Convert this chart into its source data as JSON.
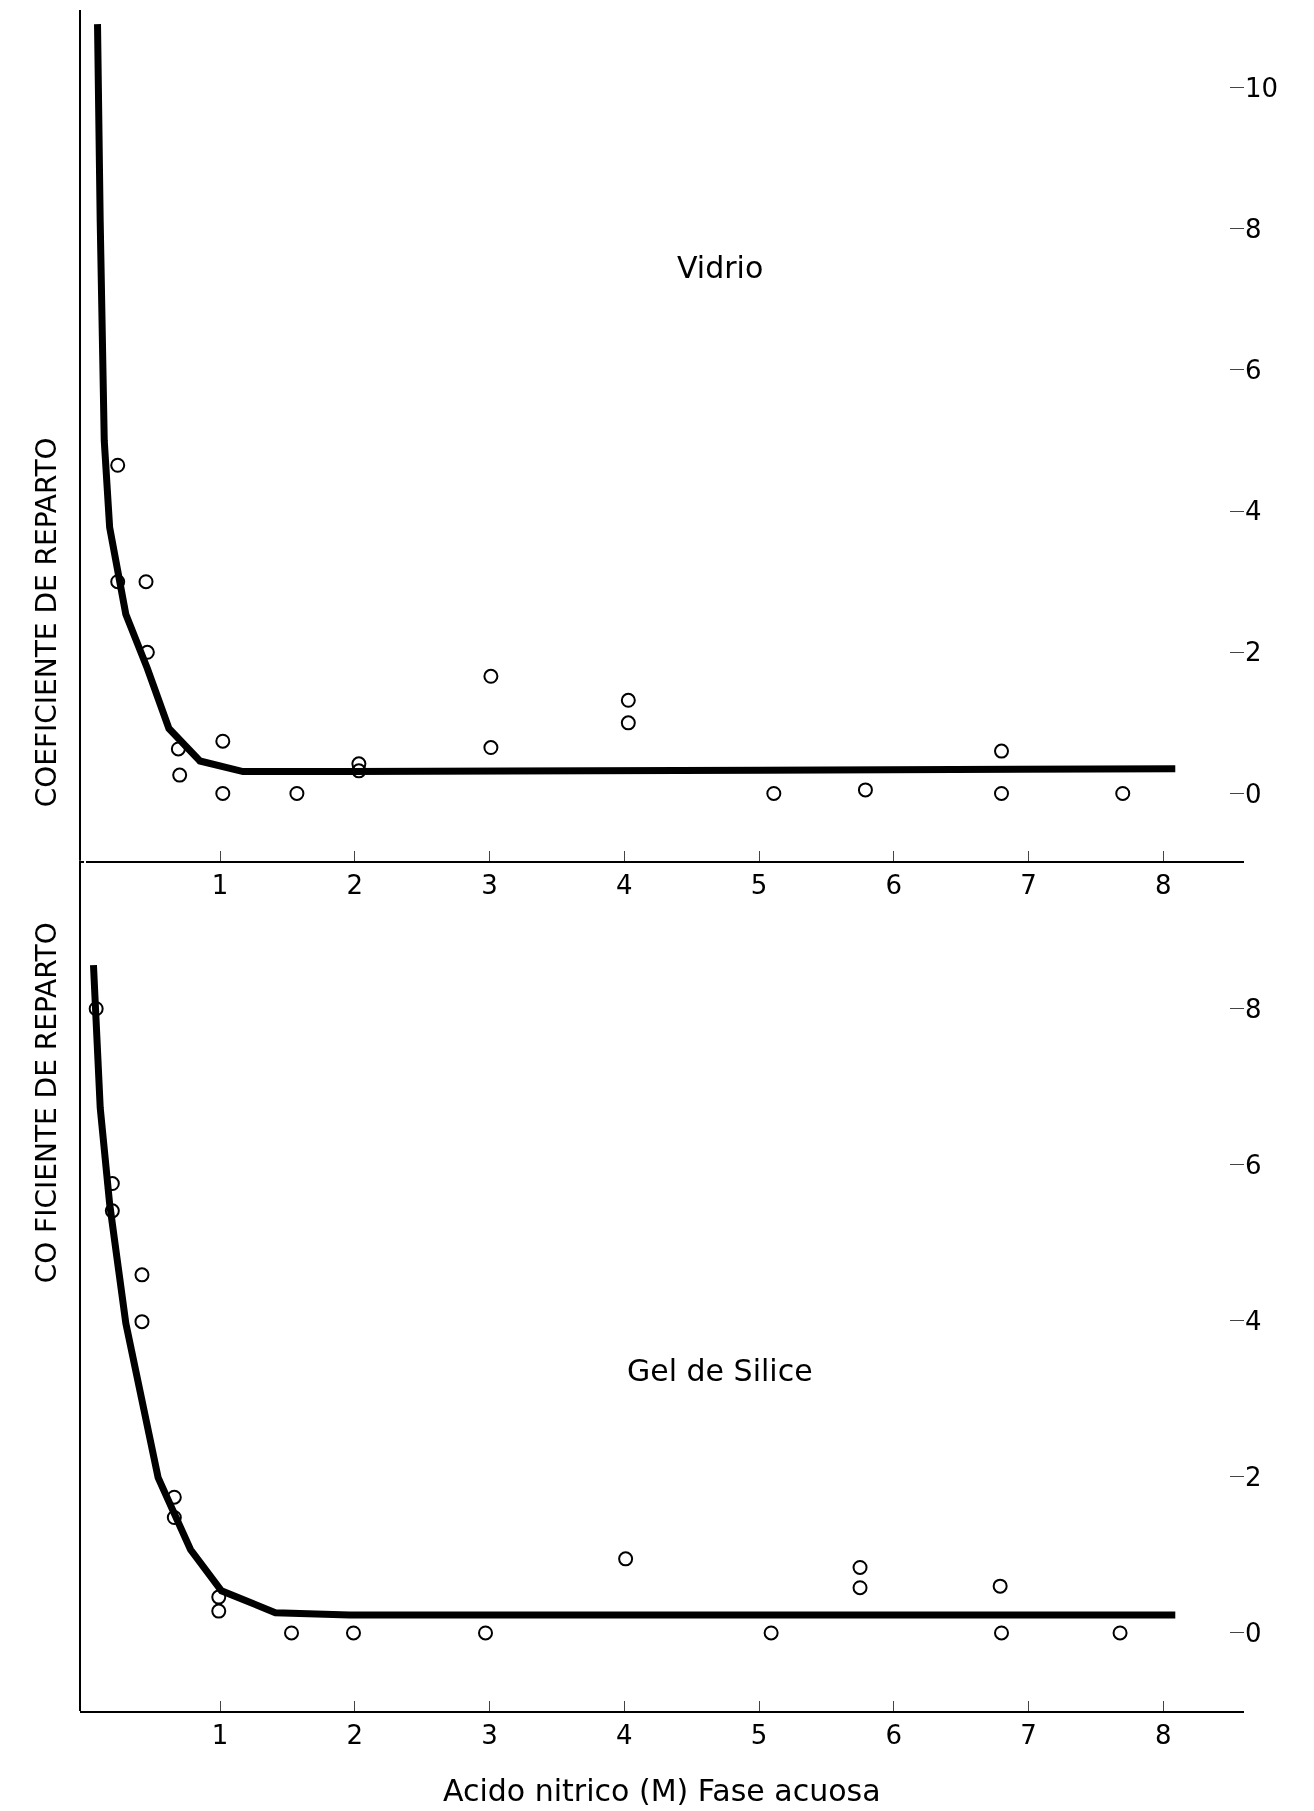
{
  "chart_data": [
    {
      "type": "scatter",
      "ylabel": "COEFICIENTE DE REPARTO",
      "annotations": [
        "Vidrio"
      ],
      "xlim": [
        -0.04,
        8.6
      ],
      "ylim": [
        -0.95,
        11.1
      ],
      "xticks": [
        1,
        2,
        3,
        4,
        5,
        6,
        7,
        8
      ],
      "yticks": [
        0,
        2,
        4,
        6,
        8,
        10
      ],
      "grid": false,
      "series": [
        {
          "marker": "circle",
          "color": "#000000",
          "x": [
            0.24,
            0.24,
            0.45,
            0.46,
            0.69,
            0.7,
            1.02,
            1.02,
            1.57,
            2.03,
            2.03,
            3.01,
            3.01,
            4.03,
            4.03,
            5.11,
            5.79,
            6.8,
            6.8,
            7.7
          ],
          "values": [
            4.65,
            3.0,
            3.0,
            2.0,
            0.63,
            0.26,
            0.74,
            0,
            0,
            0.42,
            0.32,
            1.66,
            0.65,
            1.32,
            1.0,
            0,
            0.05,
            0.6,
            0,
            0
          ]
        },
        {
          "type": "line",
          "color": "#000000",
          "line_style": "solid",
          "x": [
            0.09,
            0.11,
            0.14,
            0.18,
            0.3,
            0.46,
            0.62,
            0.85,
            1.17,
            1.96,
            8.09
          ],
          "values": [
            10.9,
            8.1,
            5.0,
            3.77,
            2.54,
            1.77,
            0.92,
            0.46,
            0.31,
            0.31,
            0.35
          ]
        }
      ]
    },
    {
      "type": "scatter",
      "xlabel": "Acido nitrico (M) Fase acuosa",
      "ylabel": "CO FICIENTE DE REPARTO",
      "annotations": [
        "Gel de Silice"
      ],
      "xlim": [
        -0.04,
        8.6
      ],
      "ylim": [
        -1.0,
        9.9
      ],
      "xticks": [
        1,
        2,
        3,
        4,
        5,
        6,
        7,
        8
      ],
      "yticks": [
        0,
        2,
        4,
        6,
        8
      ],
      "grid": false,
      "series": [
        {
          "marker": "circle",
          "color": "#000000",
          "x": [
            0.08,
            0.2,
            0.2,
            0.42,
            0.42,
            0.66,
            0.66,
            0.99,
            0.99,
            1.53,
            1.99,
            2.97,
            4.01,
            5.09,
            5.75,
            5.75,
            6.79,
            6.8,
            7.68
          ],
          "values": [
            8.0,
            5.76,
            5.41,
            4.59,
            3.99,
            1.74,
            1.48,
            0.46,
            0.28,
            0,
            0,
            0,
            0.95,
            0,
            0.84,
            0.58,
            0.6,
            0,
            0
          ]
        },
        {
          "type": "line",
          "color": "#000000",
          "line_style": "solid",
          "x": [
            0.06,
            0.11,
            0.18,
            0.3,
            0.54,
            0.78,
            1.01,
            1.41,
            1.96,
            8.09
          ],
          "values": [
            8.56,
            6.73,
            5.5,
            3.97,
            1.99,
            1.07,
            0.54,
            0.26,
            0.23,
            0.23
          ]
        }
      ]
    }
  ]
}
